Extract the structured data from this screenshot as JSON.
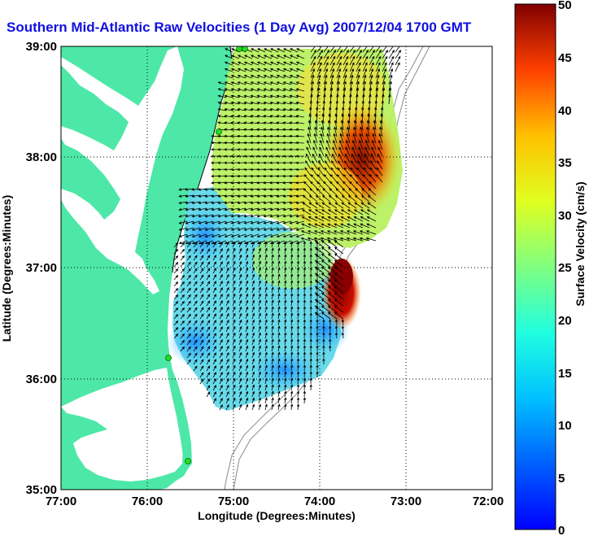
{
  "title": "Southern Mid-Atlantic Raw Velocities (1 Day Avg) 2007/12/04 1700 GMT",
  "map": {
    "xlabel": "Longitude (Degrees:Minutes)",
    "ylabel": "Latitude (Degrees:Minutes)",
    "x_ticks": [
      "77:00",
      "76:00",
      "75:00",
      "74:00",
      "73:00",
      "72:00"
    ],
    "y_ticks": [
      "39:00",
      "38:00",
      "37:00",
      "36:00",
      "35:00"
    ],
    "lon_range": [
      -77,
      -72
    ],
    "lat_range": [
      35,
      39
    ],
    "land_color": "#4de8a8",
    "station_color": "#22dd22",
    "grid": true
  },
  "colorbar": {
    "label": "Surface Velocity (cm/s)",
    "ticks": [
      "50",
      "45",
      "40",
      "35",
      "30",
      "25",
      "20",
      "15",
      "10",
      "5",
      "0"
    ],
    "range": [
      0,
      50
    ],
    "colormap": "jet"
  }
}
